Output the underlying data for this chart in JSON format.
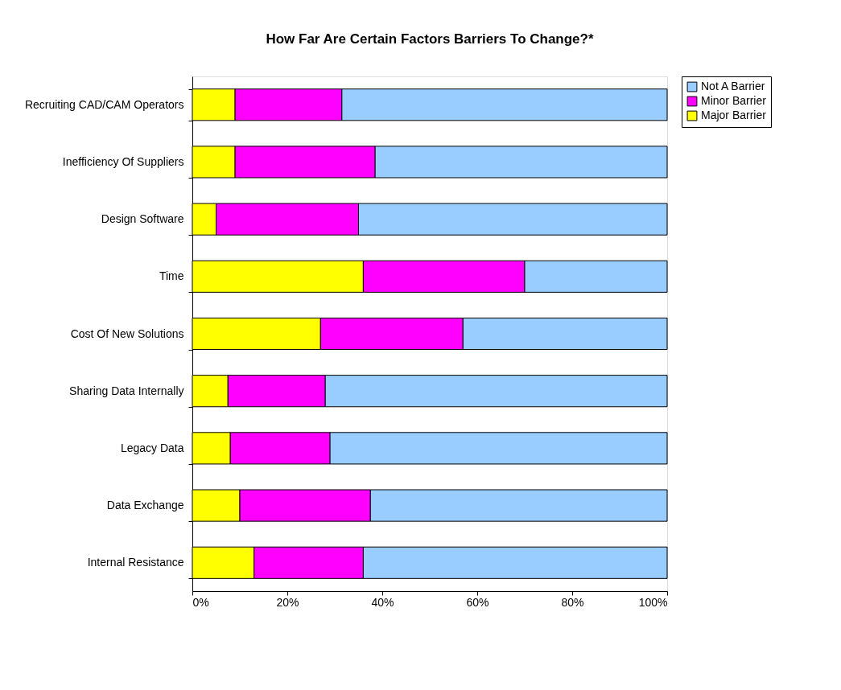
{
  "chart_data": {
    "type": "bar",
    "title": "How Far Are Certain Factors Barriers To Change?*",
    "orientation": "horizontal",
    "stacked": true,
    "legend": "right",
    "categories": [
      "Recruiting CAD/CAM Operators",
      "Inefficiency Of Suppliers",
      "Design Software",
      "Time",
      "Cost Of New Solutions",
      "Sharing Data Internally",
      "Legacy Data",
      "Data Exchange",
      "Internal Resistance"
    ],
    "series": [
      {
        "name": "Major Barrier",
        "color": "#ffff00",
        "values": [
          9,
          9,
          5,
          36,
          27,
          7.5,
          8,
          10,
          13
        ]
      },
      {
        "name": "Minor Barrier",
        "color": "#ff00ff",
        "values": [
          22.5,
          29.5,
          30,
          34,
          30,
          20.5,
          21,
          27.5,
          23
        ]
      },
      {
        "name": "Not A Barrier",
        "color": "#99ccff",
        "values": [
          68.5,
          61.5,
          65,
          30,
          43,
          72,
          71,
          62.5,
          64
        ]
      }
    ],
    "xlim": [
      0,
      100
    ],
    "xticks": [
      {
        "value": 0,
        "label": "0%"
      },
      {
        "value": 20,
        "label": "20%"
      },
      {
        "value": 40,
        "label": "40%"
      },
      {
        "value": 60,
        "label": "60%"
      },
      {
        "value": 80,
        "label": "80%"
      },
      {
        "value": 100,
        "label": "100%"
      }
    ],
    "grid": false
  }
}
